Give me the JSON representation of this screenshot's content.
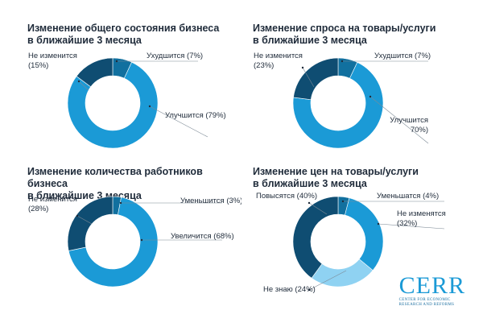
{
  "chart_data": [
    {
      "type": "pie",
      "title": [
        "Изменение общего состояния бизнеса",
        "в ближайшие 3 месяца"
      ],
      "slices": [
        {
          "label": [
            "Улучшится (79%)"
          ],
          "value": 79,
          "color": "#1b9ad6"
        },
        {
          "label": [
            "Не изменится",
            "(15%)"
          ],
          "value": 15,
          "color": "#0f4d72"
        },
        {
          "label": [
            "Ухудшится (7%)"
          ],
          "value": 7,
          "color": "#11709f"
        }
      ]
    },
    {
      "type": "pie",
      "title": [
        "Изменение спроса на товары/услуги",
        "в ближайшие 3 месяца"
      ],
      "slices": [
        {
          "label": [
            "Улучшится",
            "70%)"
          ],
          "value": 70,
          "color": "#1b9ad6"
        },
        {
          "label": [
            "Не изменится",
            "(23%)"
          ],
          "value": 23,
          "color": "#0f4d72"
        },
        {
          "label": [
            "Ухудшится (7%)"
          ],
          "value": 7,
          "color": "#11709f"
        }
      ]
    },
    {
      "type": "pie",
      "title": [
        "Изменение количества работников бизнеса",
        "в ближайшие 3 месяца"
      ],
      "slices": [
        {
          "label": [
            "Увеличится (68%)"
          ],
          "value": 68,
          "color": "#1b9ad6"
        },
        {
          "label": [
            "Не изменится",
            "(28%)"
          ],
          "value": 28,
          "color": "#0f4d72"
        },
        {
          "label": [
            "Уменьшится (3%)"
          ],
          "value": 3,
          "color": "#11709f"
        }
      ]
    },
    {
      "type": "pie",
      "title": [
        "Изменение цен на товары/услуги",
        "в ближайшие 3 месяца"
      ],
      "slices": [
        {
          "label": [
            "Не изменятся",
            "(32%)"
          ],
          "value": 32,
          "color": "#1b9ad6"
        },
        {
          "label": [
            "Не знаю (24%)"
          ],
          "value": 24,
          "color": "#8fd2f2"
        },
        {
          "label": [
            "Повысятся (40%)"
          ],
          "value": 40,
          "color": "#0f4d72"
        },
        {
          "label": [
            "Уменьшатся (4%)"
          ],
          "value": 4,
          "color": "#11709f"
        }
      ]
    }
  ],
  "logo": {
    "name": "CERR",
    "subtitle": [
      "Center for Economic",
      "Research and Reforms"
    ]
  }
}
